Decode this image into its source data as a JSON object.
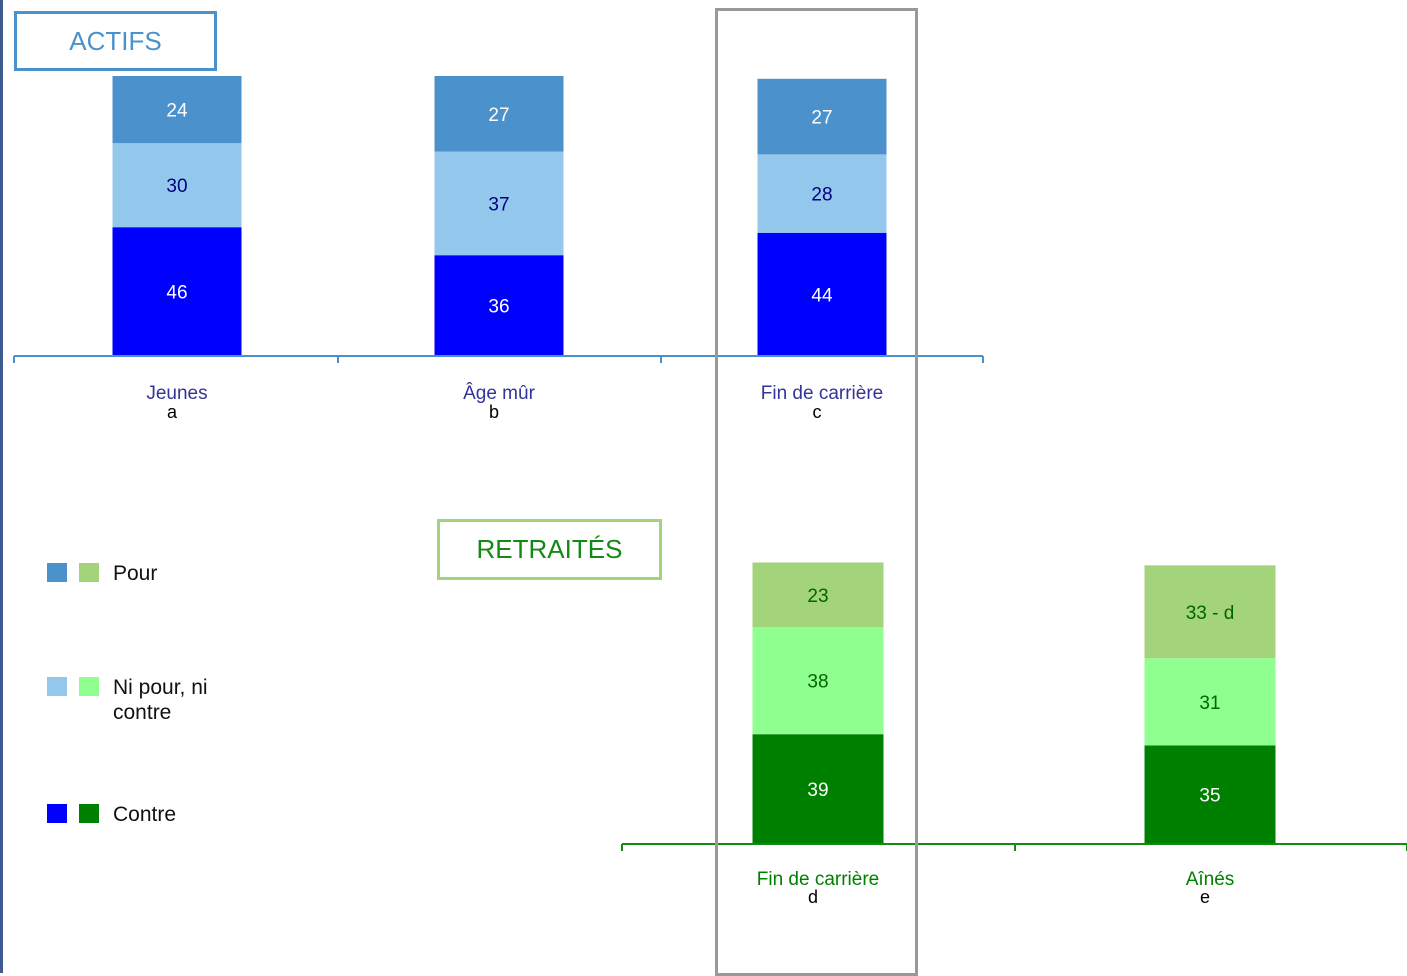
{
  "colors": {
    "actifs_pour": "#4b92cd",
    "actifs_ni": "#93c7ec",
    "actifs_contre": "#0000ff",
    "retraites_pour": "#a3d47b",
    "retraites_ni": "#8fff8f",
    "retraites_contre": "#008000",
    "actifs_axis": "#4b92cd",
    "retraites_axis": "#138a13",
    "actifs_title": "#4b92cd",
    "retraites_title": "#138a13",
    "actifs_category_text": "#333399",
    "retraites_category_text": "#008000",
    "label_dark_blue": "#000080",
    "label_white": "#ffffff",
    "label_dark_green": "#006400",
    "letter_text": "#000000"
  },
  "sections": {
    "actifs_title": "ACTIFS",
    "retraites_title": "RETRAITÉS"
  },
  "legend": [
    {
      "label": "Pour",
      "colors": [
        "actifs_pour",
        "retraites_pour"
      ]
    },
    {
      "label": "Ni pour, ni contre",
      "colors": [
        "actifs_ni",
        "retraites_ni"
      ]
    },
    {
      "label": "Contre",
      "colors": [
        "actifs_contre",
        "retraites_contre"
      ]
    }
  ],
  "chart_data": [
    {
      "type": "bar",
      "stacked": true,
      "title": "ACTIFS",
      "categories": [
        "Jeunes",
        "Âge mûr",
        "Fin de carrière"
      ],
      "category_letters": [
        "a",
        "b",
        "c"
      ],
      "series": [
        {
          "name": "Contre",
          "values": [
            46,
            36,
            44
          ],
          "labels": [
            "46",
            "36",
            "44"
          ]
        },
        {
          "name": "Ni pour, ni contre",
          "values": [
            30,
            37,
            28
          ],
          "labels": [
            "30",
            "37",
            "28"
          ]
        },
        {
          "name": "Pour",
          "values": [
            24,
            27,
            27
          ],
          "labels": [
            "24",
            "27",
            "27"
          ]
        }
      ]
    },
    {
      "type": "bar",
      "stacked": true,
      "title": "RETRAITÉS",
      "categories": [
        "Fin de carrière",
        "Aînés"
      ],
      "category_letters": [
        "d",
        "e"
      ],
      "series": [
        {
          "name": "Contre",
          "values": [
            39,
            35
          ],
          "labels": [
            "39",
            "35"
          ]
        },
        {
          "name": "Ni pour, ni contre",
          "values": [
            38,
            31
          ],
          "labels": [
            "38",
            "31"
          ]
        },
        {
          "name": "Pour",
          "values": [
            23,
            33
          ],
          "labels": [
            "23",
            "33 - d"
          ]
        }
      ]
    }
  ]
}
